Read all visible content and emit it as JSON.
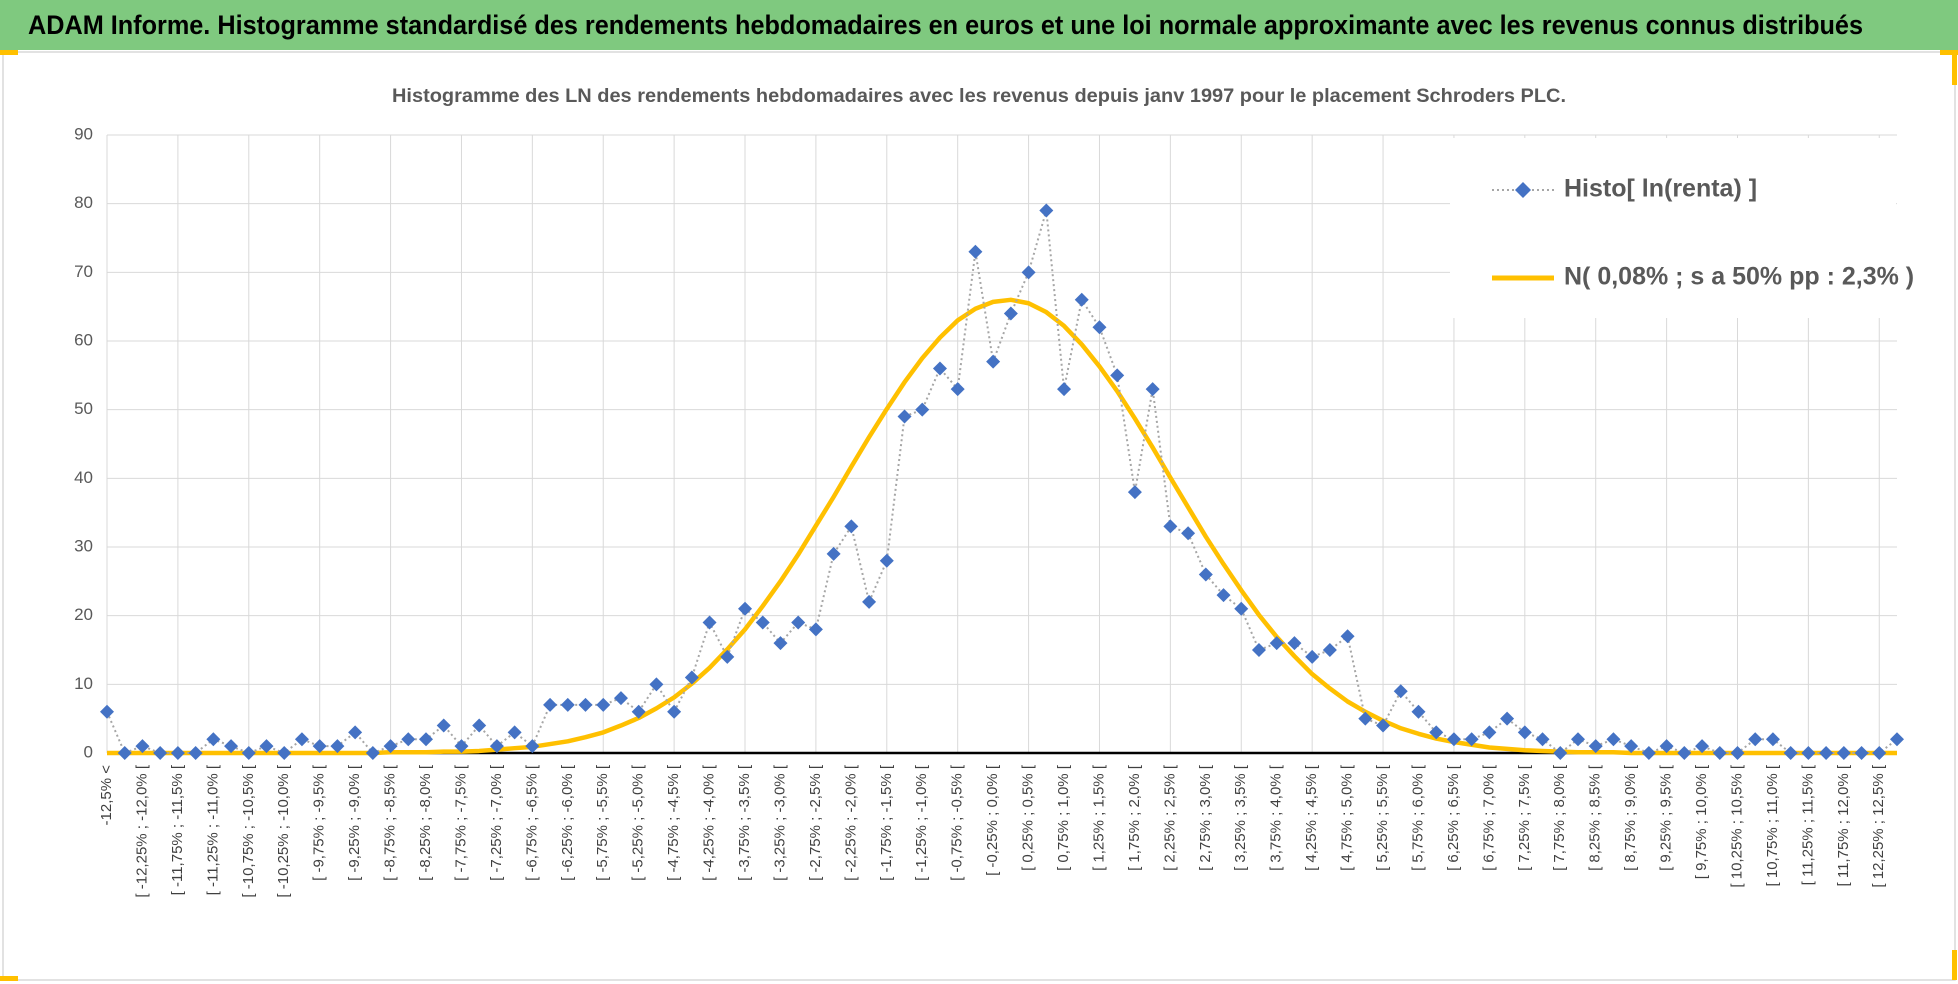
{
  "chart_data": {
    "type": "line",
    "title": "ADAM Informe. Histogramme standardisé des rendements hebdomadaires en euros et une loi normale approximante avec les revenus connus distribués",
    "subtitle": "Histogramme des LN des rendements hebdomadaires avec les revenus depuis janv 1997 pour le placement Schroders PLC.",
    "categories": [
      "-12,5% <",
      null,
      "[ -12,25% ; -12,0% [",
      null,
      "[ -11,75% ; -11,5% [",
      null,
      "[ -11,25% ; -11,0% [",
      null,
      "[ -10,75% ; -10,5% [",
      null,
      "[ -10,25% ; -10,0% [",
      null,
      "[ -9,75% ; -9,5% [",
      null,
      "[ -9,25% ; -9,0% [",
      null,
      "[ -8,75% ; -8,5% [",
      null,
      "[ -8,25% ; -8,0% [",
      null,
      "[ -7,75% ; -7,5% [",
      null,
      "[ -7,25% ; -7,0% [",
      null,
      "[ -6,75% ; -6,5% [",
      null,
      "[ -6,25% ; -6,0% [",
      null,
      "[ -5,75% ; -5,5% [",
      null,
      "[ -5,25% ; -5,0% [",
      null,
      "[ -4,75% ; -4,5% [",
      null,
      "[ -4,25% ; -4,0% [",
      null,
      "[ -3,75% ; -3,5% [",
      null,
      "[ -3,25% ; -3,0% [",
      null,
      "[ -2,75% ; -2,5% [",
      null,
      "[ -2,25% ; -2,0% [",
      null,
      "[ -1,75% ; -1,5% [",
      null,
      "[ -1,25% ; -1,0% [",
      null,
      "[ -0,75% ; -0,5% [",
      null,
      "[ -0,25% ; 0,0% [",
      null,
      "[ 0,25% ; 0,5% [",
      null,
      "[ 0,75% ; 1,0% [",
      null,
      "[ 1,25% ; 1,5% [",
      null,
      "[ 1,75% ; 2,0% [",
      null,
      "[ 2,25% ; 2,5% [",
      null,
      "[ 2,75% ; 3,0% [",
      null,
      "[ 3,25% ; 3,5% [",
      null,
      "[ 3,75% ; 4,0% [",
      null,
      "[ 4,25% ; 4,5% [",
      null,
      "[ 4,75% ; 5,0% [",
      null,
      "[ 5,25% ; 5,5% [",
      null,
      "[ 5,75% ; 6,0% [",
      null,
      "[ 6,25% ; 6,5% [",
      null,
      "[ 6,75% ; 7,0% [",
      null,
      "[ 7,25% ; 7,5% [",
      null,
      "[ 7,75% ; 8,0% [",
      null,
      "[ 8,25% ; 8,5% [",
      null,
      "[ 8,75% ; 9,0% [",
      null,
      "[ 9,25% ; 9,5% [",
      null,
      "[ 9,75% ; 10,0% [",
      null,
      "[ 10,25% ; 10,5% [",
      null,
      "[ 10,75% ; 11,0% [",
      null,
      "[ 11,25% ; 11,5% [",
      null,
      "[ 11,75% ; 12,0% [",
      null,
      "[ 12,25% ; 12,5% [",
      null
    ],
    "series": [
      {
        "name": "Histo[ ln(renta) ]",
        "color": "#4472c4",
        "line_color": "#a6a6a6",
        "marker": "diamond",
        "line_style": "dotted",
        "values": [
          6,
          0,
          1,
          0,
          0,
          0,
          2,
          1,
          0,
          1,
          0,
          2,
          1,
          1,
          3,
          0,
          1,
          2,
          2,
          4,
          1,
          4,
          1,
          3,
          1,
          7,
          7,
          7,
          7,
          8,
          6,
          10,
          6,
          11,
          19,
          14,
          21,
          19,
          16,
          19,
          18,
          29,
          33,
          22,
          28,
          49,
          50,
          56,
          53,
          73,
          57,
          64,
          70,
          79,
          53,
          66,
          62,
          55,
          38,
          53,
          33,
          32,
          26,
          23,
          21,
          15,
          16,
          16,
          14,
          15,
          17,
          5,
          4,
          9,
          6,
          3,
          2,
          2,
          3,
          5,
          3,
          2,
          0,
          2,
          1,
          2,
          1,
          0,
          1,
          0,
          1,
          0,
          0,
          2,
          2,
          0,
          0,
          0,
          0,
          0,
          0,
          2
        ]
      },
      {
        "name": "N( 0,08% ; s a 50% pp : 2,3% )",
        "color": "#ffc000",
        "marker": "none",
        "line_style": "solid",
        "values": [
          0,
          0,
          0,
          0,
          0,
          0,
          0,
          0,
          0,
          0,
          0,
          0,
          0,
          0,
          0,
          0,
          0.1,
          0.1,
          0.1,
          0.2,
          0.2,
          0.3,
          0.5,
          0.7,
          0.9,
          1.3,
          1.7,
          2.3,
          3.0,
          4.0,
          5.1,
          6.5,
          8.1,
          10.1,
          12.4,
          15.1,
          18.0,
          21.4,
          25.0,
          28.9,
          33.1,
          37.3,
          41.7,
          46.0,
          50.1,
          54.0,
          57.5,
          60.5,
          63.0,
          64.7,
          65.7,
          66.0,
          65.5,
          64.2,
          62.2,
          59.5,
          56.3,
          52.7,
          48.7,
          44.5,
          40.1,
          35.8,
          31.5,
          27.5,
          23.7,
          20.1,
          16.9,
          14.1,
          11.5,
          9.4,
          7.5,
          6.0,
          4.7,
          3.6,
          2.8,
          2.1,
          1.6,
          1.2,
          0.8,
          0.6,
          0.4,
          0.3,
          0.2,
          0.1,
          0.1,
          0.1,
          0,
          0,
          0,
          0,
          0,
          0,
          0,
          0,
          0,
          0,
          0,
          0,
          0,
          0,
          0,
          0
        ]
      }
    ],
    "ylim": [
      0,
      90
    ],
    "yticks": [
      0,
      10,
      20,
      30,
      40,
      50,
      60,
      70,
      80,
      90
    ],
    "grid": true,
    "legend": "top-right"
  }
}
